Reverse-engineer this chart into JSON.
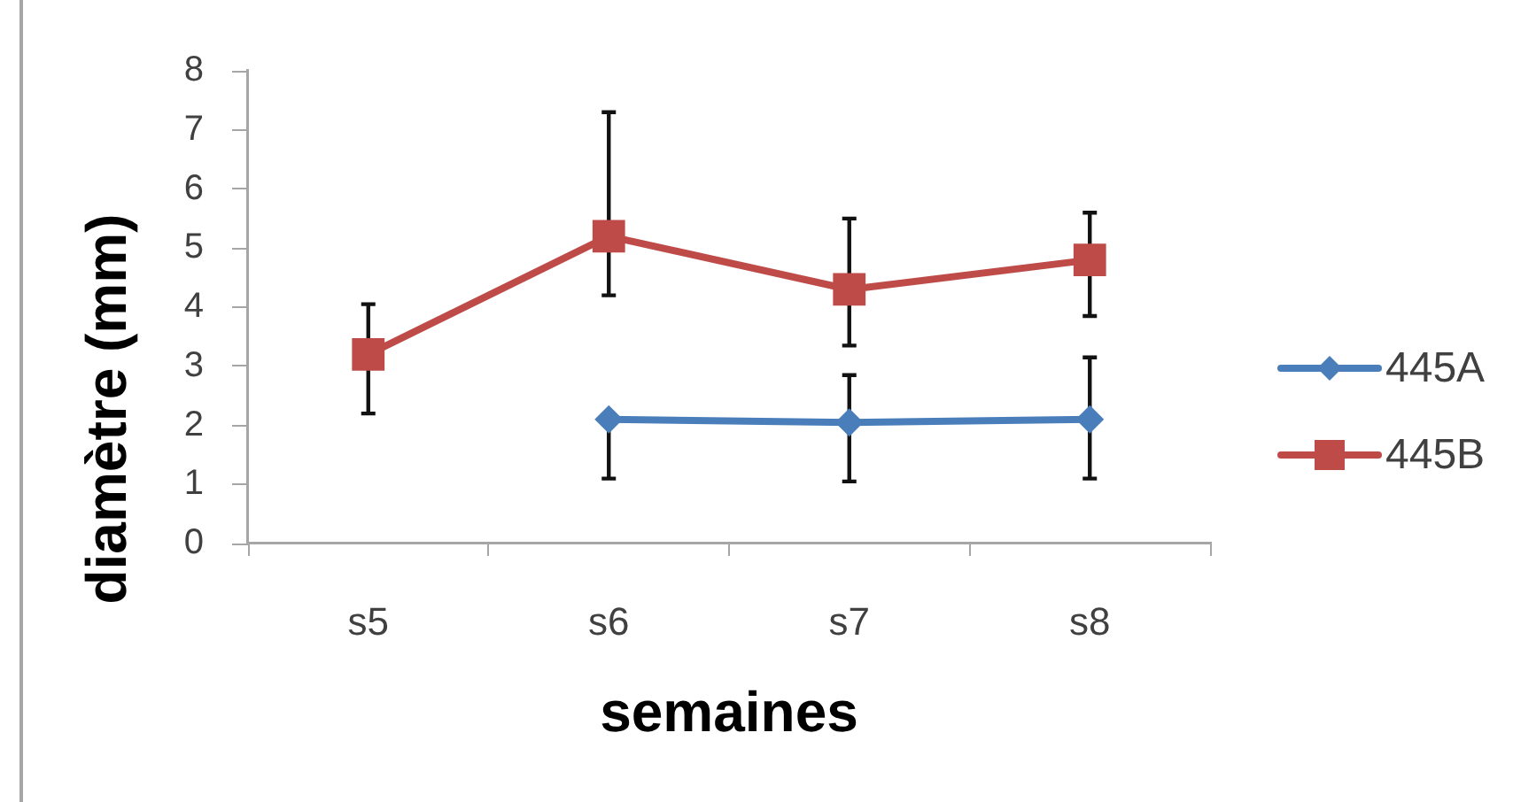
{
  "chart_data": {
    "type": "line",
    "xlabel": "semaines",
    "ylabel": "diamètre (mm)",
    "categories": [
      "s5",
      "s6",
      "s7",
      "s8"
    ],
    "series": [
      {
        "name": "445A",
        "color": "#4a7ebb",
        "marker": "diamond",
        "values": [
          null,
          2.1,
          2.05,
          2.1
        ],
        "errors": [
          null,
          [
            1.1,
            2.1
          ],
          [
            1.05,
            2.85
          ],
          [
            1.1,
            3.15
          ]
        ]
      },
      {
        "name": "445B",
        "color": "#be4b48",
        "marker": "square",
        "values": [
          3.2,
          5.2,
          4.3,
          4.8
        ],
        "errors": [
          [
            2.2,
            4.05
          ],
          [
            4.2,
            7.3
          ],
          [
            3.35,
            5.5
          ],
          [
            3.85,
            5.6
          ]
        ]
      }
    ],
    "ylim": [
      0,
      8
    ],
    "yticks": [
      0,
      1,
      2,
      3,
      4,
      5,
      6,
      7,
      8
    ],
    "grid": false,
    "legend": "right",
    "line_style": "solid"
  }
}
